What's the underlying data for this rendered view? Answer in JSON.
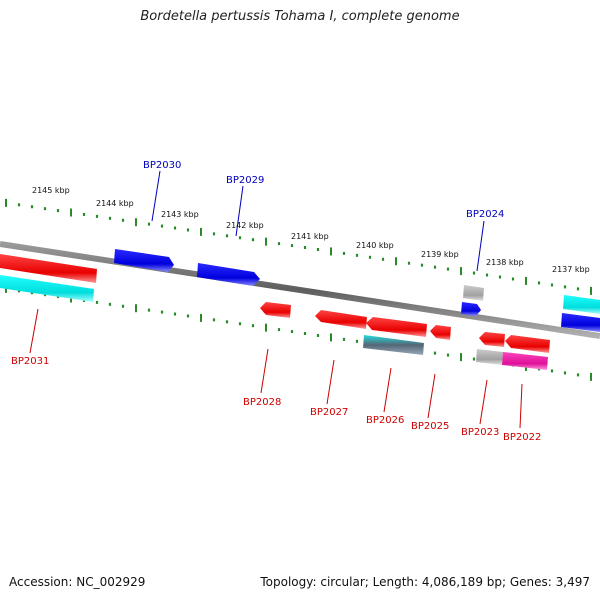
{
  "title": "Bordetella pertussis Tohama I, complete genome",
  "footer": {
    "accession": "Accession: NC_002929",
    "summary": "Topology: circular; Length: 4,086,189 bp; Genes: 3,497"
  },
  "colors": {
    "backbone": "#7a7a7a",
    "tick": "#2a8a2a",
    "gene_red": "#ee1111",
    "gene_blue": "#1111dd",
    "gene_cyan": "#11dddd",
    "gene_gray": "#aaaaaa",
    "gene_magenta": "#dd2299",
    "gene_slate": "#557799",
    "label_red": "#cc0000",
    "label_blue": "#0000bb"
  },
  "scale_labels": [
    "2145 kbp",
    "2144 kbp",
    "2143 kbp",
    "2142 kbp",
    "2141 kbp",
    "2140 kbp",
    "2139 kbp",
    "2138 kbp",
    "2137 kbp"
  ],
  "gene_labels_top": [
    "BP2030",
    "BP2029",
    "BP2024"
  ],
  "gene_labels_bottom": [
    "BP2031",
    "BP2028",
    "BP2027",
    "BP2026",
    "BP2025",
    "BP2023",
    "BP2022"
  ]
}
